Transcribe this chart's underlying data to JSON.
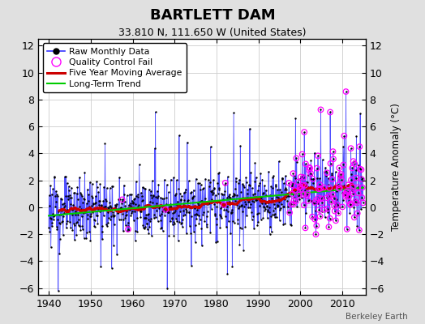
{
  "title": "BARTLETT DAM",
  "subtitle": "33.810 N, 111.650 W (United States)",
  "ylabel": "Temperature Anomaly (°C)",
  "attribution": "Berkeley Earth",
  "xlim": [
    1937.5,
    2015.5
  ],
  "ylim": [
    -6.5,
    12.5
  ],
  "yticks": [
    -6,
    -4,
    -2,
    0,
    2,
    4,
    6,
    8,
    10,
    12
  ],
  "xticks": [
    1940,
    1950,
    1960,
    1970,
    1980,
    1990,
    2000,
    2010
  ],
  "bg_color": "#e0e0e0",
  "plot_bg_color": "#ffffff",
  "raw_line_color": "#3333ff",
  "raw_fill_color": "#aaaaff",
  "raw_marker_color": "#000000",
  "qc_fail_color": "#ff00ff",
  "moving_avg_color": "#cc0000",
  "trend_color": "#00cc00",
  "grid_color": "#cccccc",
  "seed": 123
}
